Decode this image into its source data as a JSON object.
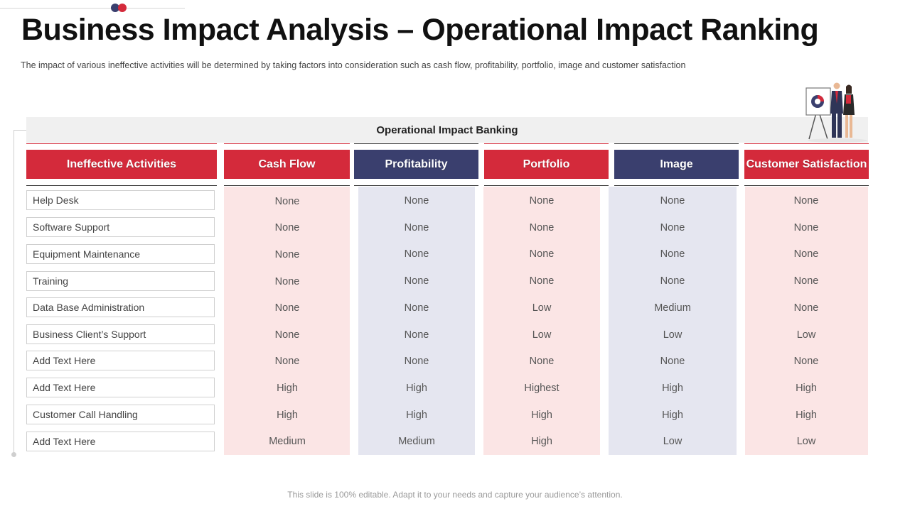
{
  "title": "Business Impact Analysis – Operational Impact Ranking",
  "subtitle": "The impact of various ineffective activities will be determined by taking factors into consideration such as cash flow, profitability, portfolio, image and customer satisfaction",
  "band_title": "Operational Impact Banking",
  "colors": {
    "red": "#d42a3b",
    "navy": "#3a3f6e",
    "pink_tint": "#fbe5e5",
    "lavender_tint": "#e5e6f0"
  },
  "headers": {
    "activities": "Ineffective Activities",
    "cash_flow": "Cash Flow",
    "profitability": "Profitability",
    "portfolio": "Portfolio",
    "image": "Image",
    "customer_satisfaction": "Customer Satisfaction"
  },
  "rows": [
    {
      "activity": "Help Desk",
      "cash_flow": "None",
      "profitability": "None",
      "portfolio": "None",
      "image": "None",
      "customer_satisfaction": "None"
    },
    {
      "activity": "Software Support",
      "cash_flow": "None",
      "profitability": "None",
      "portfolio": "None",
      "image": "None",
      "customer_satisfaction": "None"
    },
    {
      "activity": "Equipment Maintenance",
      "cash_flow": "None",
      "profitability": "None",
      "portfolio": "None",
      "image": "None",
      "customer_satisfaction": "None"
    },
    {
      "activity": "Training",
      "cash_flow": "None",
      "profitability": "None",
      "portfolio": "None",
      "image": "None",
      "customer_satisfaction": "None"
    },
    {
      "activity": "Data Base Administration",
      "cash_flow": "None",
      "profitability": "None",
      "portfolio": "Low",
      "image": "Medium",
      "customer_satisfaction": "None"
    },
    {
      "activity": "Business Client’s Support",
      "cash_flow": "None",
      "profitability": "None",
      "portfolio": "Low",
      "image": "Low",
      "customer_satisfaction": "Low"
    },
    {
      "activity": "Add Text Here",
      "cash_flow": "None",
      "profitability": "None",
      "portfolio": "None",
      "image": "None",
      "customer_satisfaction": "None"
    },
    {
      "activity": "Add Text Here",
      "cash_flow": "High",
      "profitability": "High",
      "portfolio": "Highest",
      "image": "High",
      "customer_satisfaction": "High"
    },
    {
      "activity": "Customer Call Handling",
      "cash_flow": "High",
      "profitability": "High",
      "portfolio": "High",
      "image": "High",
      "customer_satisfaction": "High"
    },
    {
      "activity": "Add Text Here",
      "cash_flow": "Medium",
      "profitability": "Medium",
      "portfolio": "High",
      "image": "Low",
      "customer_satisfaction": "Low"
    }
  ],
  "footer": "This slide is 100% editable. Adapt it to your needs and capture your audience’s attention.",
  "illustration": {
    "icon": "business-presentation-icon"
  }
}
